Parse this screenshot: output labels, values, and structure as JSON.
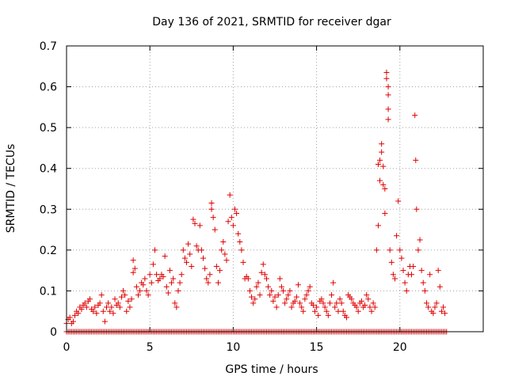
{
  "chart_data": {
    "type": "scatter",
    "title": "Day 136 of 2021, SRMTID for receiver dgar",
    "xlabel": "GPS time / hours",
    "ylabel": "SRMTID / TECUs",
    "xlim": [
      0,
      25
    ],
    "ylim": [
      0,
      0.7
    ],
    "xticks": [
      0,
      5,
      10,
      15,
      20
    ],
    "xtick_labels": [
      "0",
      "5",
      "10",
      "15",
      "20"
    ],
    "yticks": [
      0,
      0.1,
      0.2,
      0.3,
      0.4,
      0.5,
      0.6,
      0.7
    ],
    "ytick_labels": [
      "0",
      "0.1",
      "0.2",
      "0.3",
      "0.4",
      "0.5",
      "0.6",
      "0.7"
    ],
    "grid": true,
    "marker": "+",
    "color": "#e00000",
    "series": [
      {
        "name": "SRMTID",
        "points": [
          [
            0.0,
            0.02
          ],
          [
            0.1,
            0.03
          ],
          [
            0.2,
            0.035
          ],
          [
            0.3,
            0.02
          ],
          [
            0.4,
            0.025
          ],
          [
            0.5,
            0.04
          ],
          [
            0.6,
            0.05
          ],
          [
            0.7,
            0.045
          ],
          [
            0.8,
            0.06
          ],
          [
            0.9,
            0.055
          ],
          [
            1.0,
            0.065
          ],
          [
            1.1,
            0.07
          ],
          [
            1.2,
            0.06
          ],
          [
            1.3,
            0.075
          ],
          [
            1.4,
            0.08
          ],
          [
            1.5,
            0.055
          ],
          [
            1.6,
            0.05
          ],
          [
            1.7,
            0.06
          ],
          [
            1.8,
            0.045
          ],
          [
            1.9,
            0.065
          ],
          [
            2.0,
            0.07
          ],
          [
            2.1,
            0.09
          ],
          [
            2.2,
            0.05
          ],
          [
            2.3,
            0.025
          ],
          [
            2.4,
            0.06
          ],
          [
            2.5,
            0.07
          ],
          [
            2.6,
            0.05
          ],
          [
            2.7,
            0.06
          ],
          [
            2.8,
            0.045
          ],
          [
            2.9,
            0.08
          ],
          [
            3.0,
            0.065
          ],
          [
            3.1,
            0.07
          ],
          [
            3.2,
            0.06
          ],
          [
            3.3,
            0.085
          ],
          [
            3.4,
            0.1
          ],
          [
            3.5,
            0.09
          ],
          [
            3.6,
            0.05
          ],
          [
            3.7,
            0.075
          ],
          [
            3.8,
            0.06
          ],
          [
            3.9,
            0.08
          ],
          [
            4.0,
            0.145
          ],
          [
            4.0,
            0.175
          ],
          [
            4.1,
            0.155
          ],
          [
            4.2,
            0.11
          ],
          [
            4.3,
            0.09
          ],
          [
            4.4,
            0.1
          ],
          [
            4.5,
            0.12
          ],
          [
            4.6,
            0.115
          ],
          [
            4.7,
            0.13
          ],
          [
            4.8,
            0.1
          ],
          [
            4.9,
            0.09
          ],
          [
            5.0,
            0.14
          ],
          [
            5.1,
            0.12
          ],
          [
            5.2,
            0.165
          ],
          [
            5.3,
            0.2
          ],
          [
            5.4,
            0.14
          ],
          [
            5.5,
            0.125
          ],
          [
            5.6,
            0.13
          ],
          [
            5.7,
            0.14
          ],
          [
            5.8,
            0.135
          ],
          [
            5.9,
            0.185
          ],
          [
            6.0,
            0.11
          ],
          [
            6.1,
            0.095
          ],
          [
            6.2,
            0.15
          ],
          [
            6.3,
            0.12
          ],
          [
            6.4,
            0.13
          ],
          [
            6.5,
            0.07
          ],
          [
            6.6,
            0.06
          ],
          [
            6.7,
            0.1
          ],
          [
            6.8,
            0.12
          ],
          [
            6.9,
            0.14
          ],
          [
            7.0,
            0.2
          ],
          [
            7.1,
            0.18
          ],
          [
            7.2,
            0.17
          ],
          [
            7.3,
            0.215
          ],
          [
            7.4,
            0.19
          ],
          [
            7.5,
            0.16
          ],
          [
            7.6,
            0.275
          ],
          [
            7.7,
            0.265
          ],
          [
            7.8,
            0.21
          ],
          [
            7.9,
            0.2
          ],
          [
            8.0,
            0.26
          ],
          [
            8.1,
            0.2
          ],
          [
            8.2,
            0.18
          ],
          [
            8.3,
            0.155
          ],
          [
            8.4,
            0.13
          ],
          [
            8.5,
            0.12
          ],
          [
            8.6,
            0.14
          ],
          [
            8.7,
            0.315
          ],
          [
            8.7,
            0.3
          ],
          [
            8.8,
            0.28
          ],
          [
            8.9,
            0.25
          ],
          [
            9.0,
            0.16
          ],
          [
            9.1,
            0.12
          ],
          [
            9.2,
            0.15
          ],
          [
            9.3,
            0.2
          ],
          [
            9.4,
            0.22
          ],
          [
            9.5,
            0.19
          ],
          [
            9.6,
            0.175
          ],
          [
            9.7,
            0.27
          ],
          [
            9.8,
            0.335
          ],
          [
            9.9,
            0.28
          ],
          [
            10.0,
            0.26
          ],
          [
            10.1,
            0.3
          ],
          [
            10.2,
            0.29
          ],
          [
            10.3,
            0.24
          ],
          [
            10.4,
            0.22
          ],
          [
            10.5,
            0.2
          ],
          [
            10.6,
            0.17
          ],
          [
            10.7,
            0.13
          ],
          [
            10.8,
            0.135
          ],
          [
            10.9,
            0.13
          ],
          [
            11.0,
            0.1
          ],
          [
            11.1,
            0.085
          ],
          [
            11.2,
            0.07
          ],
          [
            11.3,
            0.08
          ],
          [
            11.4,
            0.11
          ],
          [
            11.5,
            0.12
          ],
          [
            11.6,
            0.09
          ],
          [
            11.7,
            0.145
          ],
          [
            11.8,
            0.165
          ],
          [
            11.9,
            0.14
          ],
          [
            12.0,
            0.13
          ],
          [
            12.1,
            0.11
          ],
          [
            12.2,
            0.09
          ],
          [
            12.3,
            0.1
          ],
          [
            12.4,
            0.075
          ],
          [
            12.5,
            0.085
          ],
          [
            12.6,
            0.06
          ],
          [
            12.7,
            0.09
          ],
          [
            12.8,
            0.13
          ],
          [
            12.9,
            0.11
          ],
          [
            13.0,
            0.1
          ],
          [
            13.1,
            0.07
          ],
          [
            13.2,
            0.08
          ],
          [
            13.3,
            0.09
          ],
          [
            13.4,
            0.1
          ],
          [
            13.5,
            0.06
          ],
          [
            13.6,
            0.07
          ],
          [
            13.7,
            0.075
          ],
          [
            13.8,
            0.085
          ],
          [
            13.9,
            0.115
          ],
          [
            14.0,
            0.07
          ],
          [
            14.1,
            0.06
          ],
          [
            14.2,
            0.05
          ],
          [
            14.3,
            0.08
          ],
          [
            14.4,
            0.09
          ],
          [
            14.5,
            0.1
          ],
          [
            14.6,
            0.11
          ],
          [
            14.7,
            0.07
          ],
          [
            14.8,
            0.065
          ],
          [
            14.9,
            0.05
          ],
          [
            15.0,
            0.06
          ],
          [
            15.1,
            0.04
          ],
          [
            15.2,
            0.075
          ],
          [
            15.3,
            0.08
          ],
          [
            15.4,
            0.07
          ],
          [
            15.5,
            0.06
          ],
          [
            15.6,
            0.05
          ],
          [
            15.7,
            0.04
          ],
          [
            15.8,
            0.07
          ],
          [
            15.9,
            0.09
          ],
          [
            16.0,
            0.12
          ],
          [
            16.1,
            0.06
          ],
          [
            16.2,
            0.07
          ],
          [
            16.3,
            0.05
          ],
          [
            16.4,
            0.08
          ],
          [
            16.5,
            0.07
          ],
          [
            16.6,
            0.05
          ],
          [
            16.7,
            0.04
          ],
          [
            16.8,
            0.035
          ],
          [
            16.9,
            0.09
          ],
          [
            17.0,
            0.085
          ],
          [
            17.1,
            0.08
          ],
          [
            17.2,
            0.07
          ],
          [
            17.3,
            0.065
          ],
          [
            17.4,
            0.06
          ],
          [
            17.5,
            0.05
          ],
          [
            17.6,
            0.07
          ],
          [
            17.7,
            0.075
          ],
          [
            17.8,
            0.06
          ],
          [
            17.9,
            0.065
          ],
          [
            18.0,
            0.09
          ],
          [
            18.1,
            0.08
          ],
          [
            18.2,
            0.06
          ],
          [
            18.3,
            0.05
          ],
          [
            18.4,
            0.07
          ],
          [
            18.5,
            0.06
          ],
          [
            18.6,
            0.2
          ],
          [
            18.7,
            0.26
          ],
          [
            18.7,
            0.41
          ],
          [
            18.8,
            0.37
          ],
          [
            18.8,
            0.42
          ],
          [
            18.9,
            0.46
          ],
          [
            18.9,
            0.44
          ],
          [
            19.0,
            0.405
          ],
          [
            19.0,
            0.36
          ],
          [
            19.1,
            0.35
          ],
          [
            19.1,
            0.29
          ],
          [
            19.2,
            0.635
          ],
          [
            19.2,
            0.62
          ],
          [
            19.3,
            0.6
          ],
          [
            19.3,
            0.58
          ],
          [
            19.3,
            0.545
          ],
          [
            19.3,
            0.52
          ],
          [
            19.4,
            0.2
          ],
          [
            19.5,
            0.17
          ],
          [
            19.6,
            0.14
          ],
          [
            19.7,
            0.13
          ],
          [
            19.8,
            0.235
          ],
          [
            19.9,
            0.32
          ],
          [
            20.0,
            0.2
          ],
          [
            20.1,
            0.18
          ],
          [
            20.2,
            0.15
          ],
          [
            20.3,
            0.12
          ],
          [
            20.4,
            0.1
          ],
          [
            20.5,
            0.14
          ],
          [
            20.6,
            0.16
          ],
          [
            20.7,
            0.14
          ],
          [
            20.8,
            0.16
          ],
          [
            20.9,
            0.53
          ],
          [
            20.95,
            0.42
          ],
          [
            21.0,
            0.3
          ],
          [
            21.1,
            0.2
          ],
          [
            21.2,
            0.225
          ],
          [
            21.3,
            0.15
          ],
          [
            21.4,
            0.12
          ],
          [
            21.5,
            0.1
          ],
          [
            21.6,
            0.07
          ],
          [
            21.7,
            0.06
          ],
          [
            21.8,
            0.14
          ],
          [
            21.9,
            0.05
          ],
          [
            22.0,
            0.045
          ],
          [
            22.1,
            0.06
          ],
          [
            22.2,
            0.07
          ],
          [
            22.3,
            0.15
          ],
          [
            22.4,
            0.11
          ],
          [
            22.5,
            0.05
          ],
          [
            22.6,
            0.06
          ],
          [
            22.7,
            0.045
          ]
        ],
        "zero_band": {
          "from": 0.0,
          "to": 22.8,
          "step": 0.1,
          "value": 0
        }
      }
    ]
  }
}
